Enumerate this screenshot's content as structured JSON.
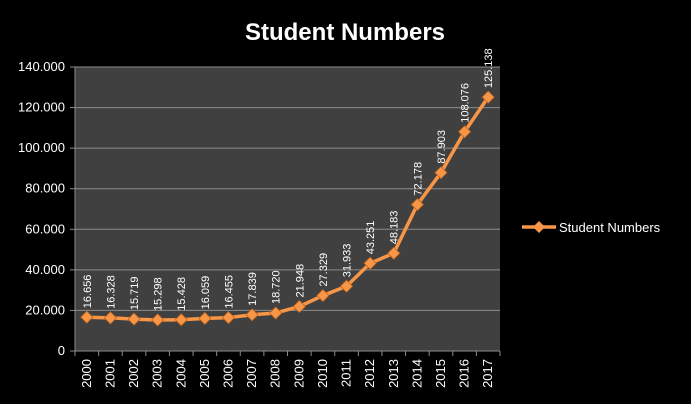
{
  "chart_data": {
    "type": "line",
    "title": "Student Numbers",
    "categories": [
      "2000",
      "2001",
      "2002",
      "2003",
      "2004",
      "2005",
      "2006",
      "2007",
      "2008",
      "2009",
      "2010",
      "2011",
      "2012",
      "2013",
      "2014",
      "2015",
      "2016",
      "2017"
    ],
    "series": [
      {
        "name": "Student Numbers",
        "values": [
          16656,
          16328,
          15719,
          15298,
          15428,
          16059,
          16455,
          17839,
          18720,
          21948,
          27329,
          31933,
          43251,
          48183,
          72178,
          87903,
          108076,
          125138
        ],
        "labels": [
          "16.656",
          "16.328",
          "15.719",
          "15.298",
          "15.428",
          "16.059",
          "16.455",
          "17.839",
          "18.720",
          "21.948",
          "27.329",
          "31.933",
          "43.251",
          "48.183",
          "72.178",
          "87.903",
          "108.076",
          "125.138"
        ]
      }
    ],
    "ylim": [
      0,
      140000
    ],
    "yticks": [
      0,
      20000,
      40000,
      60000,
      80000,
      100000,
      120000,
      140000
    ],
    "ytick_labels": [
      "0",
      "20.000",
      "40.000",
      "60.000",
      "80.000",
      "100.000",
      "120.000",
      "140.000"
    ],
    "grid": true,
    "legend_position": "right",
    "colors": {
      "background": "#000000",
      "plot_area": "#404040",
      "gridline": "#8c8c8c",
      "line": "#f79646",
      "marker": "#f79646"
    }
  }
}
